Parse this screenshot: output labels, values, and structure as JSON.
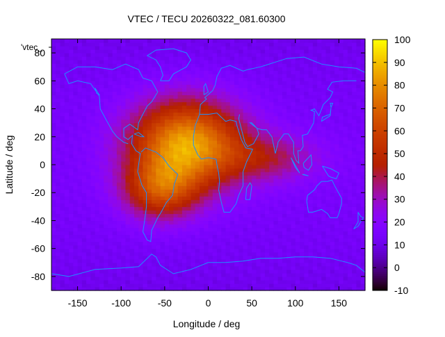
{
  "chart_data": {
    "type": "heatmap",
    "title": "VTEC / TECU 20260322_081.60300",
    "xlabel": "Longitude / deg",
    "ylabel": "Latitude / deg",
    "legend_label": "'vtec_",
    "xlim": [
      -180,
      180
    ],
    "ylim": [
      -90,
      90
    ],
    "xticks": [
      -150,
      -100,
      -50,
      0,
      50,
      100,
      150
    ],
    "yticks": [
      -80,
      -60,
      -40,
      -20,
      0,
      20,
      40,
      60,
      80
    ],
    "colorbar": {
      "range": [
        -10,
        100
      ],
      "ticks": [
        -10,
        0,
        10,
        20,
        30,
        40,
        50,
        60,
        70,
        80,
        90,
        100
      ],
      "colormap": "gnuplot-black-purple-red-orange-yellow"
    },
    "grid": {
      "lon_step_deg": 5,
      "lat_step_deg": 2.5,
      "model": {
        "background_vtec": 15,
        "peaks": [
          {
            "lon": -25,
            "lat": 15,
            "amplitude": 70,
            "lon_sigma": 45,
            "lat_sigma": 22
          },
          {
            "lon": -55,
            "lat": -18,
            "amplitude": 40,
            "lon_sigma": 30,
            "lat_sigma": 15
          },
          {
            "lon": 70,
            "lat": 5,
            "amplitude": 22,
            "lon_sigma": 40,
            "lat_sigma": 12
          }
        ]
      }
    },
    "coastline_color": "#1e90ff"
  }
}
